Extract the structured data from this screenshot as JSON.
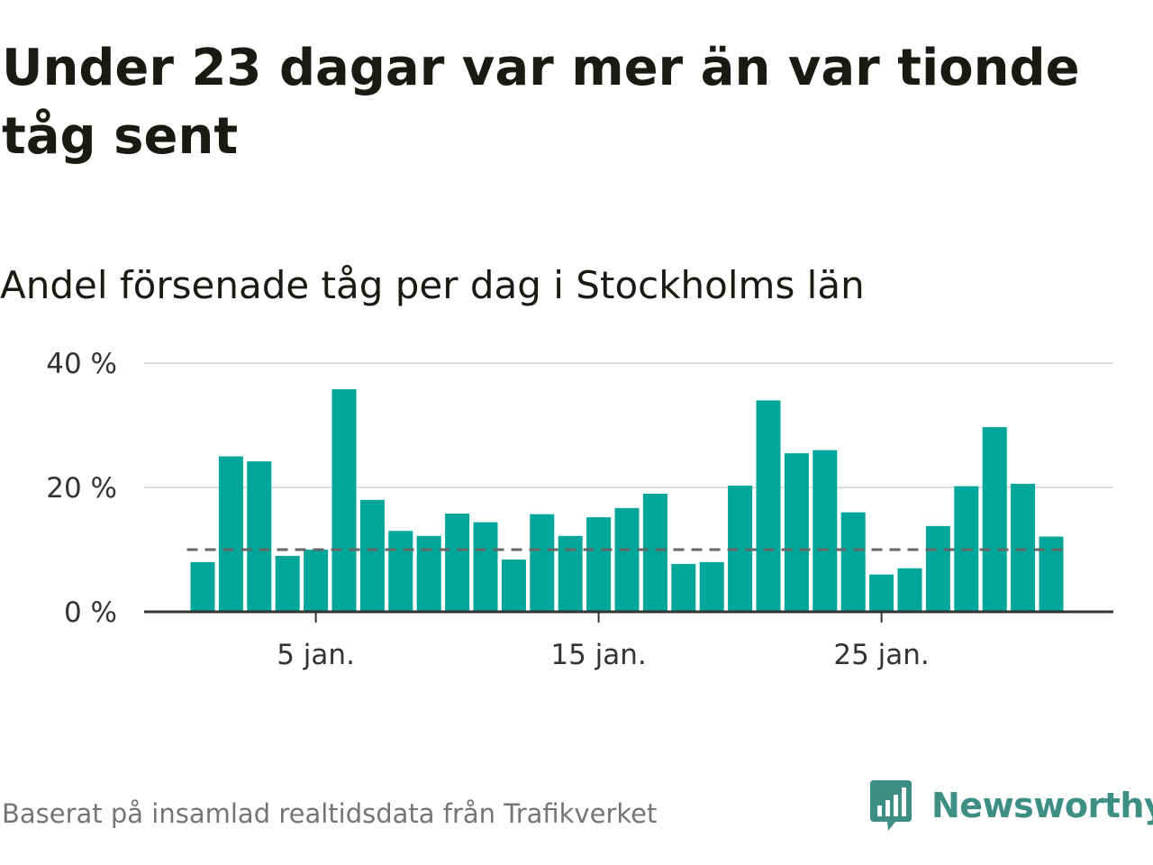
{
  "title": "Under 23 dagar var mer än var tionde tåg sent",
  "subtitle": "Andel försenade tåg per dag i Stockholms län",
  "source": "Baserat på insamlad realtidsdata från Trafikverket",
  "logo": {
    "name": "Newsworthy",
    "icon": "bar-chart-speech-bubble-icon",
    "color": "#3d8f86"
  },
  "colors": {
    "bar": "#00a69a",
    "reference_line": "#666666",
    "grid": "#dddddd",
    "axis": "#333333"
  },
  "chart_data": {
    "type": "bar",
    "x_unit": "day of January",
    "x": [
      1,
      2,
      3,
      4,
      5,
      6,
      7,
      8,
      9,
      10,
      11,
      12,
      13,
      14,
      15,
      16,
      17,
      18,
      19,
      20,
      21,
      22,
      23,
      24,
      25,
      26,
      27,
      28,
      29,
      30,
      31
    ],
    "values": [
      8,
      25,
      24.2,
      9,
      10,
      35.8,
      18,
      13,
      12.2,
      15.8,
      14.4,
      8.4,
      15.7,
      12.2,
      15.2,
      16.7,
      19,
      7.7,
      8,
      20.3,
      34,
      25.5,
      26,
      16,
      6,
      7,
      13.8,
      20.2,
      29.7,
      20.6,
      12.1
    ],
    "reference_line": 10,
    "xticks": [
      {
        "x": 5,
        "label": "5 jan."
      },
      {
        "x": 15,
        "label": "15 jan."
      },
      {
        "x": 25,
        "label": "25 jan."
      }
    ],
    "yticks": [
      {
        "value": 0,
        "label": "0 %"
      },
      {
        "value": 20,
        "label": "20 %"
      },
      {
        "value": 40,
        "label": "40 %"
      }
    ],
    "ylim": [
      0,
      40
    ],
    "grid": true
  }
}
